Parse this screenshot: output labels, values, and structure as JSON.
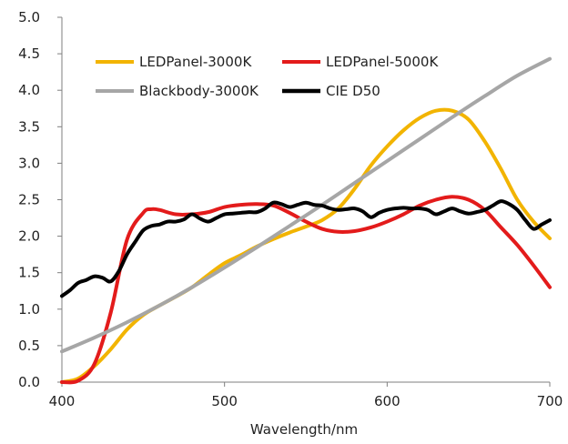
{
  "chart_data": {
    "type": "line",
    "title": "",
    "xlabel": "Wavelength/nm",
    "ylabel": "",
    "xlim": [
      400,
      700
    ],
    "ylim": [
      0,
      5
    ],
    "xticks": [
      400,
      500,
      600,
      700
    ],
    "yticks": [
      "0.0",
      "0.5",
      "1.0",
      "1.5",
      "2.0",
      "2.5",
      "3.0",
      "3.5",
      "4.0",
      "4.5",
      "5.0"
    ],
    "grid": false,
    "legend": "top-left",
    "series": [
      {
        "name": "LEDPanel-3000K",
        "color": "#f2b400",
        "x": [
          400,
          410,
          420,
          430,
          440,
          450,
          460,
          470,
          480,
          490,
          500,
          510,
          520,
          530,
          540,
          550,
          560,
          570,
          580,
          590,
          600,
          610,
          620,
          630,
          640,
          650,
          660,
          670,
          680,
          690,
          700
        ],
        "y": [
          0.0,
          0.05,
          0.22,
          0.45,
          0.72,
          0.92,
          1.05,
          1.17,
          1.3,
          1.47,
          1.63,
          1.74,
          1.86,
          1.96,
          2.05,
          2.13,
          2.22,
          2.38,
          2.65,
          2.97,
          3.23,
          3.45,
          3.62,
          3.72,
          3.72,
          3.6,
          3.3,
          2.92,
          2.5,
          2.2,
          1.97
        ]
      },
      {
        "name": "LEDPanel-5000K",
        "color": "#e31b1b",
        "x": [
          400,
          410,
          420,
          430,
          440,
          450,
          455,
          460,
          470,
          480,
          490,
          500,
          510,
          520,
          530,
          540,
          550,
          560,
          570,
          580,
          590,
          600,
          610,
          620,
          630,
          640,
          650,
          660,
          670,
          680,
          690,
          700
        ],
        "y": [
          0.0,
          0.02,
          0.25,
          0.95,
          1.95,
          2.32,
          2.37,
          2.36,
          2.3,
          2.3,
          2.33,
          2.4,
          2.43,
          2.44,
          2.42,
          2.32,
          2.2,
          2.1,
          2.06,
          2.07,
          2.12,
          2.2,
          2.3,
          2.42,
          2.5,
          2.54,
          2.5,
          2.36,
          2.12,
          1.88,
          1.6,
          1.3
        ]
      },
      {
        "name": "Blackbody-3000K",
        "color": "#a6a6a6",
        "x": [
          400,
          420,
          440,
          460,
          480,
          500,
          520,
          540,
          560,
          580,
          600,
          620,
          640,
          660,
          680,
          700
        ],
        "y": [
          0.42,
          0.61,
          0.82,
          1.05,
          1.3,
          1.57,
          1.85,
          2.14,
          2.43,
          2.73,
          3.03,
          3.33,
          3.63,
          3.92,
          4.2,
          4.43
        ]
      },
      {
        "name": "CIE D50",
        "color": "#000000",
        "x": [
          400,
          405,
          410,
          415,
          420,
          425,
          430,
          435,
          440,
          445,
          450,
          455,
          460,
          465,
          470,
          475,
          480,
          485,
          490,
          495,
          500,
          505,
          510,
          515,
          520,
          525,
          530,
          535,
          540,
          545,
          550,
          555,
          560,
          565,
          570,
          575,
          580,
          585,
          590,
          595,
          600,
          605,
          610,
          615,
          620,
          625,
          630,
          635,
          640,
          645,
          650,
          655,
          660,
          665,
          670,
          675,
          680,
          685,
          690,
          695,
          700
        ],
        "y": [
          1.18,
          1.26,
          1.36,
          1.4,
          1.45,
          1.43,
          1.38,
          1.52,
          1.75,
          1.92,
          2.08,
          2.14,
          2.16,
          2.2,
          2.2,
          2.23,
          2.3,
          2.24,
          2.2,
          2.25,
          2.3,
          2.31,
          2.32,
          2.33,
          2.33,
          2.38,
          2.46,
          2.44,
          2.4,
          2.43,
          2.46,
          2.43,
          2.42,
          2.38,
          2.36,
          2.37,
          2.38,
          2.34,
          2.26,
          2.32,
          2.36,
          2.38,
          2.39,
          2.38,
          2.38,
          2.36,
          2.3,
          2.34,
          2.38,
          2.34,
          2.31,
          2.33,
          2.36,
          2.42,
          2.48,
          2.44,
          2.36,
          2.22,
          2.1,
          2.16,
          2.22
        ]
      }
    ]
  }
}
